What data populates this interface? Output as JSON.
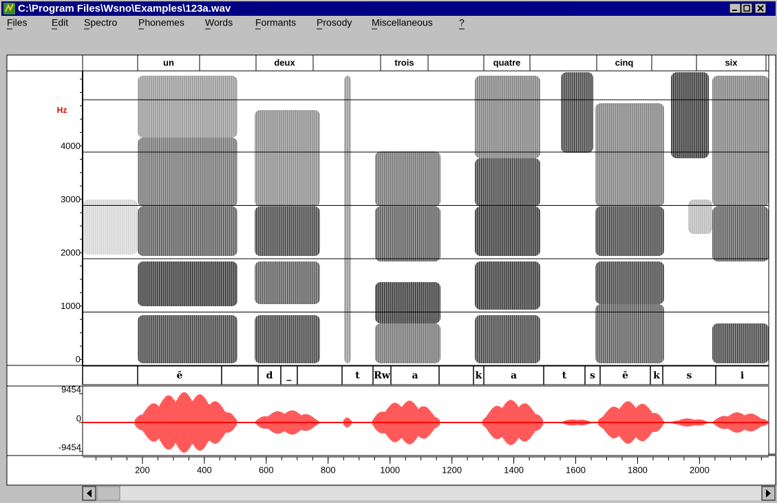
{
  "window": {
    "title": "C:\\Program Files\\Wsno\\Examples\\123a.wav"
  },
  "menu": [
    "Files",
    "Edit",
    "Spectro",
    "Phonemes",
    "Words",
    "Formants",
    "Prosody",
    "Miscellaneous",
    "?"
  ],
  "words": [
    "un",
    "deux",
    "trois",
    "quatre",
    "cinq",
    "six"
  ],
  "spectrogram": {
    "unit": "Hz",
    "yticks": [
      4000,
      3000,
      2000,
      1000,
      0
    ]
  },
  "phonemes": [
    "ē",
    "d",
    "_",
    "t",
    "Rw",
    "a",
    "k",
    "a",
    "t",
    "s",
    "ē",
    "k",
    "s",
    "i"
  ],
  "waveform": {
    "yticks": [
      9454,
      0,
      -9454
    ]
  },
  "time_axis": {
    "ticks": [
      200,
      400,
      600,
      800,
      1000,
      1200,
      1400,
      1600,
      1800,
      2000
    ]
  }
}
